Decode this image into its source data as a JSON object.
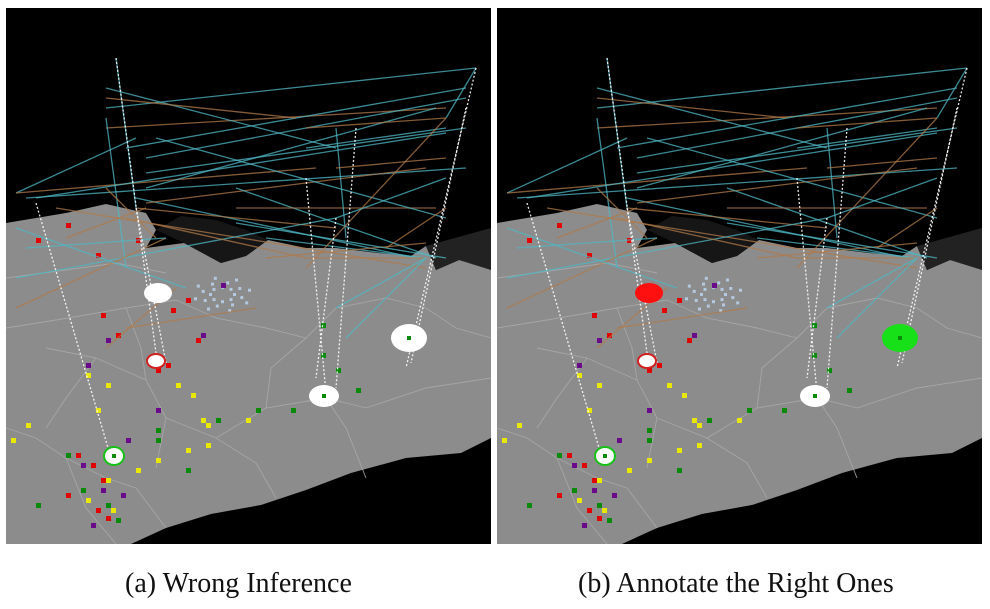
{
  "figure": {
    "panels": [
      {
        "id": "a",
        "caption": "(a) Wrong Inference",
        "highlighted_fills": [
          "#ffffff",
          "#ffffff"
        ]
      },
      {
        "id": "b",
        "caption": "(b) Annotate the Right Ones",
        "highlighted_fills": [
          "#ff1010",
          "#18e018"
        ]
      }
    ]
  },
  "colors": {
    "background": "#000000",
    "land": "#8c8c8c",
    "region_border": "#a8a8a8",
    "marker_red": "#e00000",
    "marker_yellow": "#e8e800",
    "marker_green": "#0a8a0a",
    "marker_purple": "#6a0a8a",
    "link_cyan": "#4fb7c4",
    "link_orange": "#b07a4a",
    "link_dotted": "#ffffff"
  }
}
